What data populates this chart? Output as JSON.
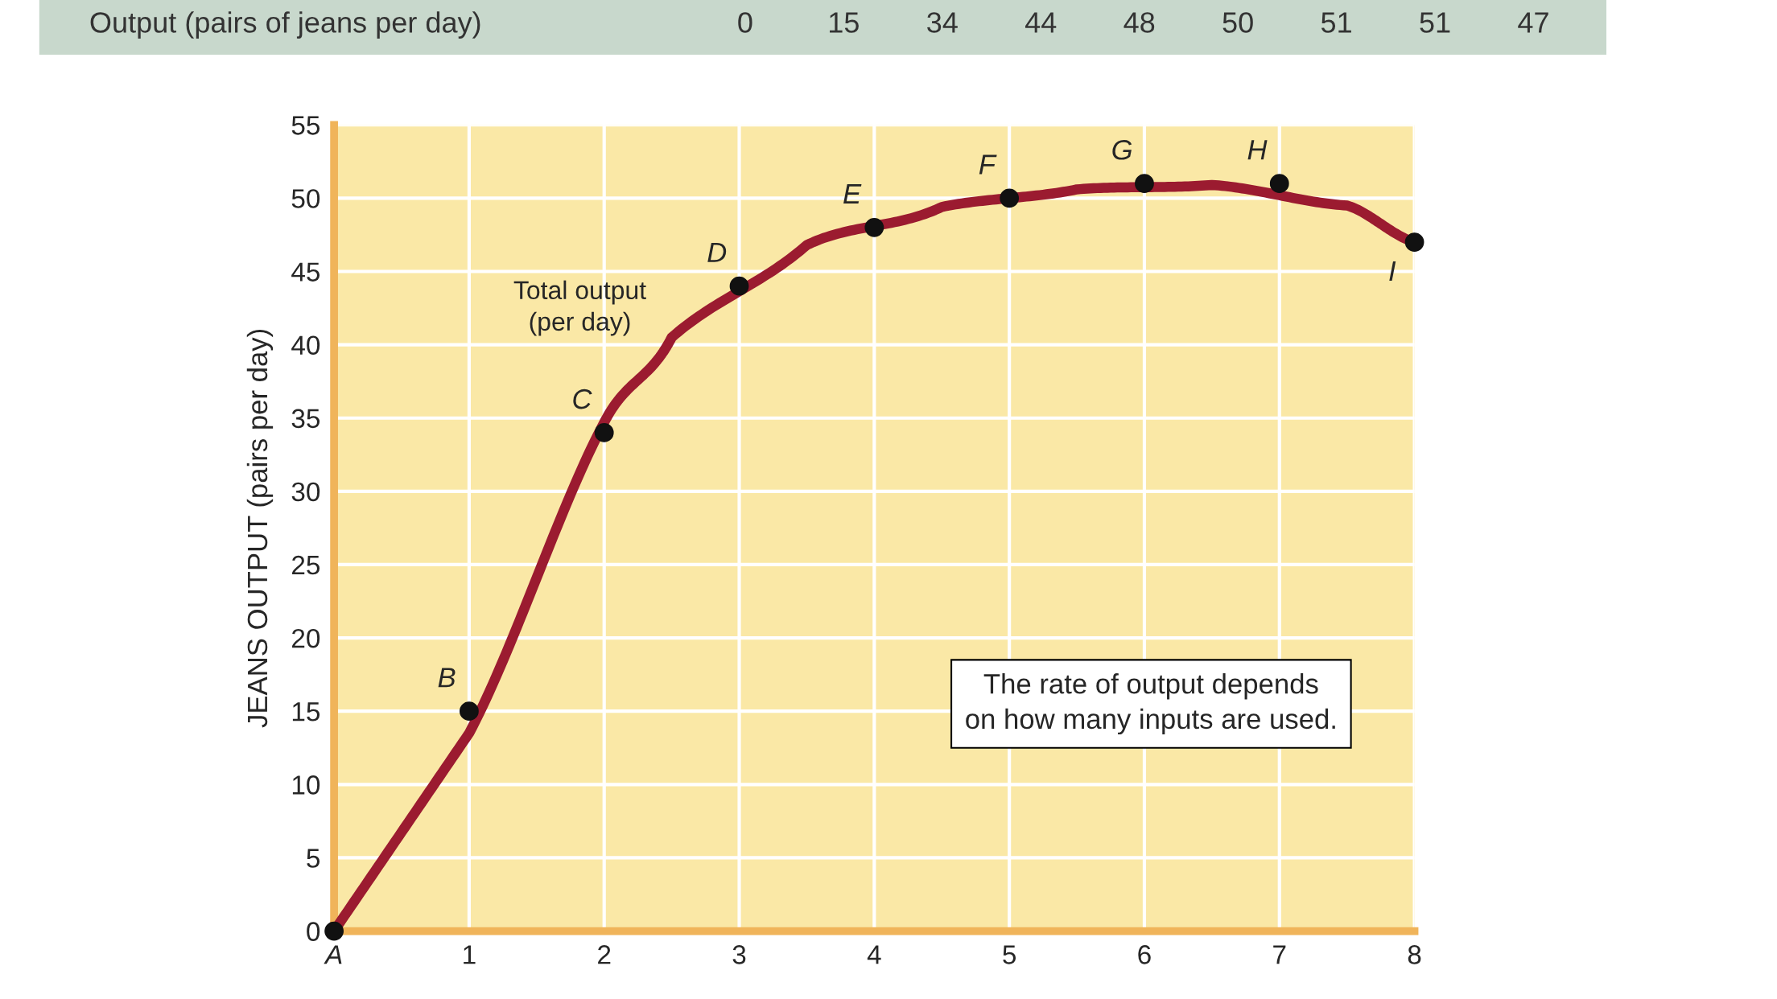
{
  "chart_data": [
    {
      "type": "other",
      "title": "Output (pairs of jeans per day)",
      "annotations": [
        "0",
        "15",
        "34",
        "44",
        "48",
        "50",
        "51",
        "51",
        "47"
      ]
    },
    {
      "type": "scatter",
      "ylabel": "JEANS OUTPUT (pairs per day)",
      "x": [
        0,
        1,
        2,
        3,
        4,
        5,
        6,
        7,
        8
      ],
      "series": [
        {
          "type": "line",
          "name": "Total output (per day)",
          "color": "#9b1b30",
          "x": [
            0,
            1,
            2,
            2.5,
            3.5,
            4.5,
            5.5,
            6.5,
            7.5,
            8
          ],
          "values": [
            0,
            13.5,
            34.7,
            40.5,
            46.8,
            49.4,
            50.6,
            50.9,
            49.5,
            47
          ]
        },
        {
          "type": "scatter",
          "color": "#111111",
          "marker": "circle",
          "values": [
            0,
            15,
            34,
            44,
            48,
            50,
            51,
            51,
            47
          ]
        }
      ],
      "xlim": [
        0,
        8
      ],
      "ylim": [
        0,
        55
      ],
      "xticks": [
        {
          "value": 0,
          "label": "A"
        },
        1,
        2,
        3,
        4,
        5,
        6,
        7,
        8
      ],
      "yticks": [
        0,
        5,
        10,
        15,
        20,
        25,
        30,
        35,
        40,
        45,
        50,
        55
      ],
      "grid": true,
      "annotations": [
        {
          "text": "B",
          "x": 1,
          "y": 15
        },
        {
          "text": "C",
          "x": 2,
          "y": 34
        },
        {
          "text": "D",
          "x": 3,
          "y": 44
        },
        {
          "text": "E",
          "x": 4,
          "y": 48
        },
        {
          "text": "F",
          "x": 5,
          "y": 50
        },
        {
          "text": "G",
          "x": 6,
          "y": 51
        },
        {
          "text": "H",
          "x": 7,
          "y": 51
        },
        {
          "text": "I",
          "x": 8,
          "y": 47
        },
        "The rate of output depends\non how many inputs are used."
      ]
    }
  ]
}
